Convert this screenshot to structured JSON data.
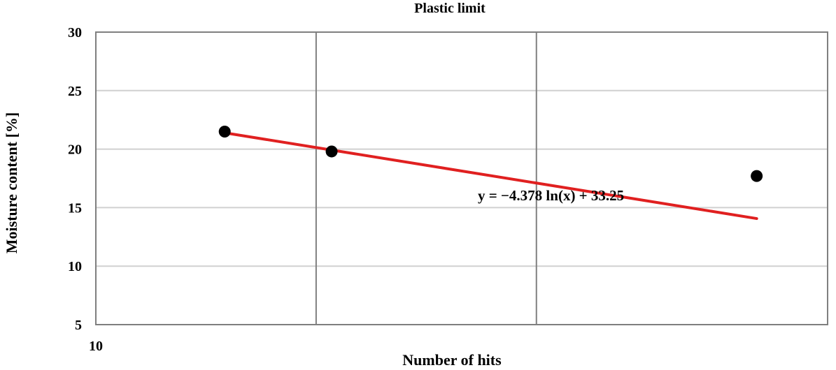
{
  "chart_data": {
    "type": "scatter",
    "title": "Plastic limit",
    "xlabel": "Number of hits",
    "ylabel": "Moisture content  [%]",
    "x_scale": "log",
    "xlim": [
      10,
      100
    ],
    "ylim": [
      5,
      30
    ],
    "x_tick_labels": [
      "10"
    ],
    "y_ticks": [
      5,
      10,
      15,
      20,
      25,
      30
    ],
    "x_gridlines": [
      20,
      40
    ],
    "grid": true,
    "series": [
      {
        "points": [
          {
            "x": 15,
            "y": 21.5
          },
          {
            "x": 21,
            "y": 19.8
          },
          {
            "x": 80,
            "y": 17.7
          }
        ],
        "color": "#000000"
      }
    ],
    "trendline": {
      "equation": "y = −4.378 ln(x) + 33.25",
      "a": -4.378,
      "b": 33.25,
      "x_range": [
        15,
        80
      ],
      "color": "#e02020"
    }
  }
}
